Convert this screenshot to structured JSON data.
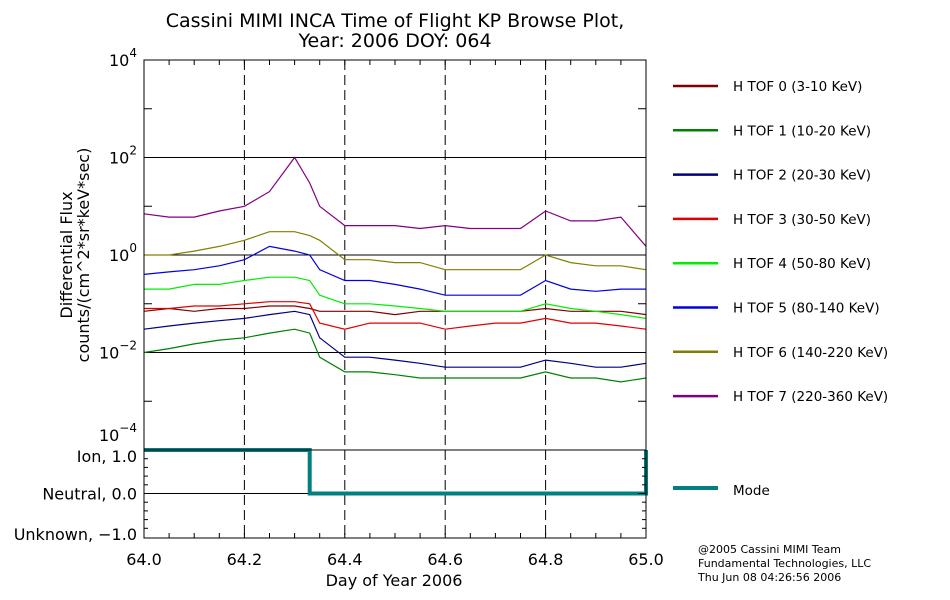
{
  "chart_data": [
    {
      "type": "line",
      "title": "Cassini MIMI INCA Time of Flight KP Browse Plot,",
      "subtitle": "Year: 2006 DOY: 064",
      "ylabel_line1": "Differential Flux",
      "ylabel_line2": "counts/(cm^2*sr*keV*sec)",
      "yscale": "log",
      "ylim": [
        0.0001,
        10000
      ],
      "ytick_labels": [
        {
          "base": "10",
          "exp": "4",
          "value": 10000
        },
        {
          "base": "10",
          "exp": "2",
          "value": 100
        },
        {
          "base": "10",
          "exp": "0",
          "value": 1
        },
        {
          "base": "10",
          "exp": "−2",
          "value": 0.01
        },
        {
          "base": "10",
          "exp": "−4",
          "value": 0.0001
        }
      ],
      "xlim": [
        64.0,
        65.0
      ],
      "grid": "dashed vertical at 64.2, 64.4, 64.6, 64.8; solid horizontal at decades",
      "legend_placement": "right",
      "x": [
        64.0,
        64.05,
        64.1,
        64.15,
        64.2,
        64.25,
        64.3,
        64.33,
        64.35,
        64.4,
        64.45,
        64.5,
        64.55,
        64.6,
        64.65,
        64.7,
        64.75,
        64.8,
        64.85,
        64.9,
        64.95,
        65.0
      ],
      "series": [
        {
          "name": "H TOF 0 (3-10 KeV)",
          "color": "#800000",
          "values": [
            0.07,
            0.08,
            0.07,
            0.08,
            0.08,
            0.09,
            0.09,
            0.08,
            0.07,
            0.07,
            0.07,
            0.06,
            0.07,
            0.07,
            0.07,
            0.07,
            0.07,
            0.08,
            0.07,
            0.07,
            0.07,
            0.06
          ]
        },
        {
          "name": "H TOF 1 (10-20 KeV)",
          "color": "#008000",
          "values": [
            0.01,
            0.012,
            0.015,
            0.018,
            0.02,
            0.025,
            0.03,
            0.025,
            0.008,
            0.004,
            0.004,
            0.0035,
            0.003,
            0.003,
            0.003,
            0.003,
            0.003,
            0.004,
            0.003,
            0.003,
            0.0025,
            0.003
          ]
        },
        {
          "name": "H TOF 2 (20-30 KeV)",
          "color": "#000080",
          "values": [
            0.03,
            0.035,
            0.04,
            0.045,
            0.05,
            0.06,
            0.07,
            0.06,
            0.02,
            0.008,
            0.008,
            0.007,
            0.006,
            0.005,
            0.005,
            0.005,
            0.005,
            0.007,
            0.006,
            0.005,
            0.005,
            0.006
          ]
        },
        {
          "name": "H TOF 3 (30-50 KeV)",
          "color": "#e00000",
          "values": [
            0.08,
            0.08,
            0.09,
            0.09,
            0.1,
            0.11,
            0.11,
            0.1,
            0.04,
            0.03,
            0.04,
            0.04,
            0.04,
            0.03,
            0.035,
            0.04,
            0.04,
            0.05,
            0.04,
            0.04,
            0.035,
            0.03
          ]
        },
        {
          "name": "H TOF 4 (50-80 KeV)",
          "color": "#00ee00",
          "values": [
            0.2,
            0.2,
            0.25,
            0.25,
            0.3,
            0.35,
            0.35,
            0.3,
            0.15,
            0.1,
            0.1,
            0.09,
            0.08,
            0.07,
            0.07,
            0.07,
            0.07,
            0.1,
            0.08,
            0.07,
            0.06,
            0.05
          ]
        },
        {
          "name": "H TOF 5 (80-140 KeV)",
          "color": "#0000e0",
          "values": [
            0.4,
            0.45,
            0.5,
            0.6,
            0.8,
            1.5,
            1.2,
            1.0,
            0.5,
            0.3,
            0.3,
            0.25,
            0.2,
            0.15,
            0.15,
            0.15,
            0.15,
            0.3,
            0.2,
            0.18,
            0.2,
            0.2
          ]
        },
        {
          "name": "H TOF 6 (140-220 KeV)",
          "color": "#808000",
          "values": [
            1.0,
            1.0,
            1.2,
            1.5,
            2.0,
            3.0,
            3.0,
            2.5,
            2.0,
            0.8,
            0.8,
            0.7,
            0.7,
            0.5,
            0.5,
            0.5,
            0.5,
            1.0,
            0.7,
            0.6,
            0.6,
            0.5
          ]
        },
        {
          "name": "H TOF 7 (220-360 KeV)",
          "color": "#800080",
          "values": [
            7,
            6,
            6,
            8,
            10,
            20,
            100,
            30,
            10,
            4,
            4,
            4,
            3.5,
            4,
            3.5,
            3.5,
            3.5,
            8,
            5,
            5,
            6,
            1.5
          ]
        }
      ]
    },
    {
      "type": "line",
      "name": "Mode",
      "color": "#008080",
      "ytick_labels": [
        {
          "label": "Ion, 1.0",
          "value": 1.0
        },
        {
          "label": "Neutral, 0.0",
          "value": 0.0
        },
        {
          "label": "Unknown, −1.0",
          "value": -1.0
        }
      ],
      "ylim": [
        -1.0,
        1.0
      ],
      "xlim": [
        64.0,
        65.0
      ],
      "xlabel": "Day of Year 2006",
      "xtick_labels": [
        "64.0",
        "64.2",
        "64.4",
        "64.6",
        "64.8",
        "65.0"
      ],
      "xtick_values": [
        64.0,
        64.2,
        64.4,
        64.6,
        64.8,
        65.0
      ],
      "x": [
        64.0,
        64.33,
        64.33,
        65.0,
        65.0
      ],
      "values": [
        1,
        1,
        0,
        0,
        1
      ]
    }
  ],
  "credits": {
    "line1": "@2005 Cassini MIMI Team",
    "line2": "Fundamental Technologies, LLC",
    "line3": "Thu Jun 08 04:26:56 2006"
  }
}
